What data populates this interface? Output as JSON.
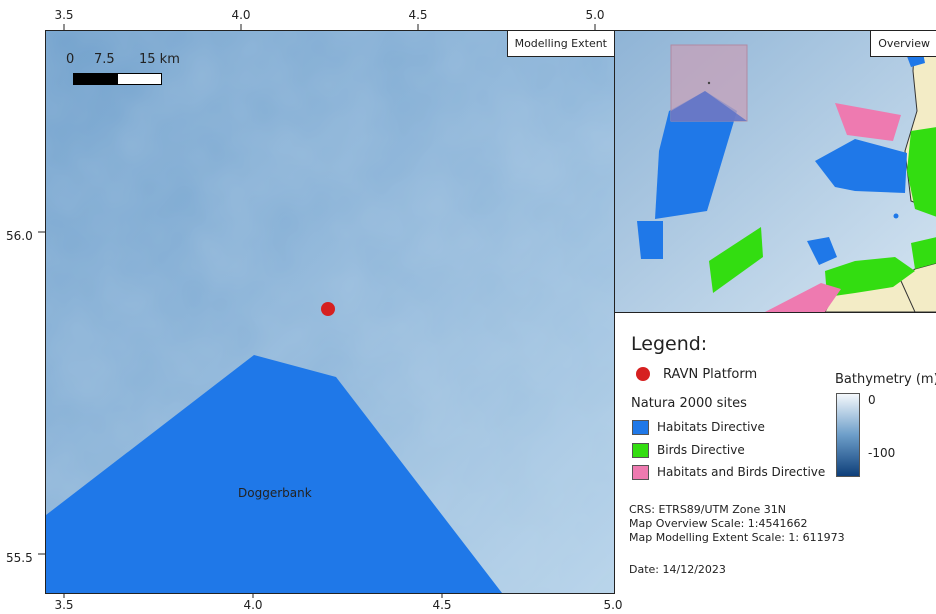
{
  "axes": {
    "x_ticks": [
      "3.5",
      "4.0",
      "4.5",
      "5.0"
    ],
    "y_ticks": [
      "56.0",
      "55.5"
    ]
  },
  "main_map": {
    "title": "Modelling Extent",
    "scalebar": {
      "labels": [
        "0",
        "7.5",
        "15 km"
      ]
    },
    "platform_label": "",
    "area_label": "Doggerbank",
    "colors": {
      "sea": "#8fb6d8",
      "habitats": "#1f78e8",
      "platform": "#d62020"
    }
  },
  "overview_map": {
    "title": "Overview",
    "colors": {
      "land": "#f3ecc6",
      "habitats": "#1f78e8",
      "birds": "#33dd11",
      "both": "#ee7ab0",
      "extent": "#c6a0b8"
    }
  },
  "legend": {
    "heading": "Legend:",
    "platform": "RAVN Platform",
    "natura_heading": "Natura 2000 sites",
    "items": [
      {
        "label": "Habitats Directive",
        "color": "#1f78e8"
      },
      {
        "label": "Birds Directive",
        "color": "#33dd11"
      },
      {
        "label": "Habitats and Birds Directive",
        "color": "#ee7ab0"
      }
    ],
    "bathymetry": {
      "title": "Bathymetry (m)",
      "max_label": "0",
      "min_label": "-100"
    },
    "crs": "CRS: ETRS89/UTM Zone 31N",
    "overview_scale": "Map Overview Scale: 1:4541662",
    "extent_scale": "Map Modelling Extent Scale: 1: 611973",
    "date": "Date: 14/12/2023"
  }
}
